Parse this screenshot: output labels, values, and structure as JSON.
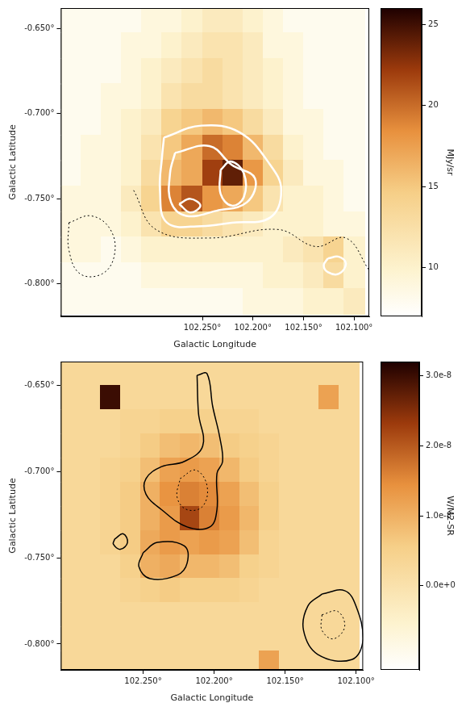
{
  "chart_data": [
    {
      "type": "heatmap",
      "xlabel": "Galactic Longitude",
      "ylabel": "Galactic Latitude",
      "xlim": [
        102.39,
        102.085
      ],
      "ylim": [
        -0.819,
        -0.638
      ],
      "xticks": [
        {
          "value": 102.25,
          "label": "102.250°"
        },
        {
          "value": 102.2,
          "label": "102.200°"
        },
        {
          "value": 102.15,
          "label": "102.150°"
        },
        {
          "value": 102.1,
          "label": "102.100°"
        }
      ],
      "yticks": [
        {
          "value": -0.65,
          "label": "-0.650°"
        },
        {
          "value": -0.7,
          "label": "-0.700°"
        },
        {
          "value": -0.75,
          "label": "-0.750°"
        },
        {
          "value": -0.8,
          "label": "-0.800°"
        }
      ],
      "grid": false,
      "heatmap": {
        "x": [
          102.38,
          102.36,
          102.34,
          102.32,
          102.3,
          102.28,
          102.26,
          102.24,
          102.22,
          102.2,
          102.18,
          102.16,
          102.14,
          102.12,
          102.1
        ],
        "y": [
          -0.645,
          -0.66,
          -0.675,
          -0.69,
          -0.705,
          -0.72,
          -0.735,
          -0.75,
          -0.765,
          -0.78,
          -0.795,
          -0.81
        ],
        "values": [
          [
            8,
            8,
            8,
            8,
            9,
            9,
            10,
            11,
            11,
            10,
            9,
            8,
            8,
            8,
            8
          ],
          [
            8,
            8,
            8,
            9,
            9,
            10,
            11,
            12,
            12,
            11,
            9,
            9,
            8,
            8,
            8
          ],
          [
            8,
            8,
            8,
            9,
            10,
            11,
            12,
            13,
            12,
            11,
            10,
            9,
            8,
            8,
            8
          ],
          [
            8,
            8,
            9,
            9,
            10,
            12,
            13,
            13,
            12,
            11,
            10,
            9,
            8,
            8,
            8
          ],
          [
            8,
            8,
            9,
            10,
            11,
            14,
            15,
            16,
            15,
            13,
            11,
            9,
            9,
            8,
            8
          ],
          [
            8,
            9,
            9,
            10,
            12,
            15,
            17,
            20,
            19,
            16,
            13,
            10,
            9,
            8,
            8
          ],
          [
            8,
            9,
            9,
            10,
            13,
            16,
            17,
            22,
            24,
            18,
            14,
            11,
            9,
            9,
            8
          ],
          [
            9,
            9,
            9,
            11,
            14,
            19,
            21,
            18,
            17,
            15,
            12,
            10,
            10,
            9,
            8
          ],
          [
            9,
            9,
            9,
            10,
            12,
            14,
            14,
            13,
            12,
            11,
            10,
            10,
            10,
            9,
            9
          ],
          [
            9,
            9,
            8,
            9,
            10,
            10,
            10,
            10,
            10,
            10,
            10,
            11,
            12,
            14,
            10
          ],
          [
            8,
            8,
            8,
            8,
            9,
            9,
            9,
            9,
            9,
            9,
            10,
            10,
            11,
            13,
            10
          ],
          [
            8,
            8,
            8,
            8,
            8,
            8,
            8,
            8,
            8,
            9,
            9,
            9,
            10,
            10,
            11
          ]
        ]
      },
      "colorbar": {
        "label": "MJy/sr",
        "range": [
          7,
          26
        ],
        "ticks": [
          10,
          15,
          20,
          25
        ]
      },
      "contours": [
        {
          "color": "#ffffff",
          "line_style": "solid",
          "x": [
            102.288,
            102.251,
            102.213,
            102.183,
            102.172,
            102.183,
            102.221,
            102.251,
            102.285,
            102.292,
            102.29,
            102.288
          ],
          "y": [
            -0.714,
            -0.707,
            -0.711,
            -0.73,
            -0.745,
            -0.761,
            -0.764,
            -0.766,
            -0.764,
            -0.745,
            -0.726,
            -0.714
          ]
        },
        {
          "color": "#ffffff",
          "line_style": "solid",
          "x": [
            102.277,
            102.243,
            102.221,
            102.198,
            102.206,
            102.236,
            102.266,
            102.281,
            102.282,
            102.277
          ],
          "y": [
            -0.723,
            -0.719,
            -0.73,
            -0.738,
            -0.752,
            -0.757,
            -0.76,
            -0.752,
            -0.735,
            -0.723
          ]
        },
        {
          "color": "#ffffff",
          "line_style": "solid",
          "x": [
            102.232,
            102.222,
            102.209,
            102.209,
            102.221,
            102.232,
            102.232
          ],
          "y": [
            -0.733,
            -0.728,
            -0.735,
            -0.749,
            -0.754,
            -0.747,
            -0.733
          ]
        },
        {
          "color": "#ffffff",
          "line_style": "solid",
          "x": [
            102.273,
            102.262,
            102.252,
            102.262,
            102.273
          ],
          "y": [
            -0.753,
            -0.75,
            -0.754,
            -0.758,
            -0.753
          ]
        },
        {
          "color": "#ffffff",
          "line_style": "solid",
          "x": [
            102.126,
            102.115,
            102.108,
            102.115,
            102.126,
            102.13,
            102.126
          ],
          "y": [
            -0.785,
            -0.784,
            -0.788,
            -0.794,
            -0.793,
            -0.789,
            -0.785
          ]
        },
        {
          "color": "#000000",
          "line_style": "dotted",
          "x": [
            102.382,
            102.36,
            102.341,
            102.337,
            102.349,
            102.371,
            102.382,
            102.382
          ],
          "y": [
            -0.764,
            -0.76,
            -0.768,
            -0.783,
            -0.794,
            -0.794,
            -0.78,
            -0.764
          ]
        },
        {
          "color": "#000000",
          "line_style": "dotted",
          "x": [
            102.318,
            102.296,
            102.243,
            102.175,
            102.138,
            102.108,
            102.085
          ],
          "y": [
            -0.745,
            -0.768,
            -0.773,
            -0.768,
            -0.778,
            -0.773,
            -0.792
          ]
        }
      ]
    },
    {
      "type": "heatmap",
      "xlabel": "Galactic Longitude",
      "ylabel": "Galactic Latitude",
      "xlim": [
        102.308,
        102.095
      ],
      "ylim": [
        -0.815,
        -0.636
      ],
      "xticks": [
        {
          "value": 102.25,
          "label": "102.250°"
        },
        {
          "value": 102.2,
          "label": "102.200°"
        },
        {
          "value": 102.15,
          "label": "102.150°"
        },
        {
          "value": 102.1,
          "label": "102.100°"
        }
      ],
      "yticks": [
        {
          "value": -0.65,
          "label": "-0.650°"
        },
        {
          "value": -0.7,
          "label": "-0.700°"
        },
        {
          "value": -0.75,
          "label": "-0.750°"
        },
        {
          "value": -0.8,
          "label": "-0.800°"
        }
      ],
      "grid": false,
      "heatmap": {
        "x": [
          102.301,
          102.287,
          102.273,
          102.259,
          102.245,
          102.231,
          102.217,
          102.203,
          102.189,
          102.175,
          102.161,
          102.147,
          102.133,
          102.119,
          102.105
        ],
        "y": [
          -0.643,
          -0.657,
          -0.671,
          -0.685,
          -0.699,
          -0.713,
          -0.727,
          -0.741,
          -0.755,
          -0.769,
          -0.783,
          -0.797,
          -0.811
        ],
        "values": [
          [
            3e-09,
            3e-09,
            3e-09,
            3e-09,
            3e-09,
            3e-09,
            3e-09,
            3e-09,
            3e-09,
            3e-09,
            3e-09,
            3e-09,
            3e-09,
            3e-09,
            3e-09
          ],
          [
            3e-09,
            3e-09,
            3e-08,
            3e-09,
            3e-09,
            3e-09,
            3e-09,
            3e-09,
            3e-09,
            3e-09,
            3e-09,
            3e-09,
            3e-09,
            1.2e-08,
            3e-09
          ],
          [
            3e-09,
            3e-09,
            3e-09,
            4e-09,
            4e-09,
            5e-09,
            5e-09,
            5e-09,
            4e-09,
            4e-09,
            3e-09,
            3e-09,
            3e-09,
            3e-09,
            3e-09
          ],
          [
            3e-09,
            3e-09,
            3e-09,
            4e-09,
            6e-09,
            8e-09,
            9e-09,
            8e-09,
            6e-09,
            5e-09,
            4e-09,
            3e-09,
            3e-09,
            3e-09,
            3e-09
          ],
          [
            3e-09,
            3e-09,
            4e-09,
            5e-09,
            8e-09,
            1.2e-08,
            1.3e-08,
            1.2e-08,
            9e-09,
            6e-09,
            4e-09,
            3e-09,
            3e-09,
            3e-09,
            3e-09
          ],
          [
            3e-09,
            3e-09,
            4e-09,
            6e-09,
            1e-08,
            1.4e-08,
            1.6e-08,
            1.5e-08,
            1.2e-08,
            8e-09,
            5e-09,
            3e-09,
            3e-09,
            3e-09,
            3e-09
          ],
          [
            3e-09,
            3e-09,
            4e-09,
            6e-09,
            1e-08,
            1.3e-08,
            2.2e-08,
            1.6e-08,
            1.3e-08,
            9e-09,
            5e-09,
            3e-09,
            3e-09,
            3e-09,
            3e-09
          ],
          [
            3e-09,
            3e-09,
            4e-09,
            6e-09,
            1.1e-08,
            1.3e-08,
            1.2e-08,
            1.3e-08,
            1.2e-08,
            8e-09,
            4e-09,
            3e-09,
            3e-09,
            3e-09,
            3e-09
          ],
          [
            3e-09,
            3e-09,
            3e-09,
            5e-09,
            1e-08,
            1.1e-08,
            9e-09,
            9e-09,
            8e-09,
            5e-09,
            4e-09,
            3e-09,
            3e-09,
            3e-09,
            3e-09
          ],
          [
            3e-09,
            3e-09,
            3e-09,
            4e-09,
            5e-09,
            6e-09,
            5e-09,
            5e-09,
            5e-09,
            4e-09,
            3e-09,
            3e-09,
            3e-09,
            3e-09,
            3e-09
          ],
          [
            3e-09,
            3e-09,
            3e-09,
            3e-09,
            3e-09,
            3e-09,
            3e-09,
            3e-09,
            3e-09,
            3e-09,
            3e-09,
            3e-09,
            3e-09,
            3e-09,
            3e-09
          ],
          [
            3e-09,
            3e-09,
            3e-09,
            3e-09,
            3e-09,
            3e-09,
            3e-09,
            3e-09,
            3e-09,
            3e-09,
            3e-09,
            3e-09,
            3e-09,
            3e-09,
            3e-09
          ],
          [
            3e-09,
            3e-09,
            3e-09,
            3e-09,
            3e-09,
            3e-09,
            3e-09,
            3e-09,
            3e-09,
            3e-09,
            1.2e-08,
            3e-09,
            3e-09,
            3e-09,
            3e-09
          ]
        ]
      },
      "colorbar": {
        "label": "W/M2-SR",
        "range": [
          -1.2e-08,
          3.2e-08
        ],
        "ticks": [
          {
            "value": 0,
            "label": "0.0e+0"
          },
          {
            "value": 1e-08,
            "label": "1.0e-8"
          },
          {
            "value": 2e-08,
            "label": "2.0e-8"
          },
          {
            "value": 3e-08,
            "label": "3.0e-8"
          }
        ]
      },
      "contours": [
        {
          "color": "#000000",
          "line_style": "solid",
          "x": [
            102.212,
            102.205,
            102.201,
            102.196,
            102.194,
            102.198,
            102.198,
            102.203,
            102.219,
            102.237,
            102.248,
            102.248,
            102.237,
            102.221,
            102.208,
            102.211,
            102.212
          ],
          "y": [
            -0.644,
            -0.643,
            -0.662,
            -0.68,
            -0.694,
            -0.701,
            -0.722,
            -0.732,
            -0.732,
            -0.722,
            -0.713,
            -0.704,
            -0.697,
            -0.694,
            -0.685,
            -0.666,
            -0.644
          ]
        },
        {
          "color": "#000000",
          "line_style": "solid",
          "x": [
            102.25,
            102.24,
            102.221,
            102.219,
            102.226,
            102.245,
            102.253,
            102.25
          ],
          "y": [
            -0.747,
            -0.741,
            -0.743,
            -0.753,
            -0.76,
            -0.762,
            -0.755,
            -0.747
          ]
        },
        {
          "color": "#000000",
          "line_style": "solid",
          "x": [
            102.124,
            102.108,
            102.1,
            102.095,
            102.103,
            102.127,
            102.137,
            102.134,
            102.124
          ],
          "y": [
            -0.771,
            -0.769,
            -0.778,
            -0.797,
            -0.809,
            -0.806,
            -0.792,
            -0.778,
            -0.771
          ]
        },
        {
          "color": "#000000",
          "line_style": "solid",
          "x": [
            102.27,
            102.264,
            102.261,
            102.266,
            102.271,
            102.27
          ],
          "y": [
            -0.739,
            -0.736,
            -0.741,
            -0.745,
            -0.742,
            -0.739
          ]
        },
        {
          "color": "#000000",
          "line_style": "dotted",
          "x": [
            102.224,
            102.213,
            102.205,
            102.208,
            102.219,
            102.226,
            102.224
          ],
          "y": [
            -0.704,
            -0.699,
            -0.708,
            -0.72,
            -0.722,
            -0.715,
            -0.704
          ]
        },
        {
          "color": "#000000",
          "line_style": "dotted",
          "x": [
            102.124,
            102.113,
            102.108,
            102.116,
            102.124,
            102.124
          ],
          "y": [
            -0.783,
            -0.781,
            -0.79,
            -0.797,
            -0.792,
            -0.783
          ]
        }
      ]
    }
  ]
}
